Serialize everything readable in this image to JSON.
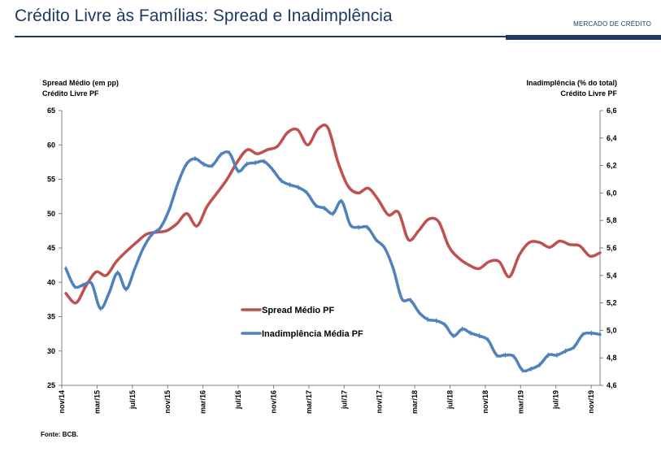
{
  "header": {
    "title": "Crédito Livre às Famílias: Spread e Inadimplência",
    "section_label": "MERCADO DE CRÉDITO"
  },
  "axes": {
    "left_label_line1": "Spread Médio (em pp)",
    "left_label_line2": "Crédito Livre PF",
    "right_label_line1": "Inadimplência (% do total)",
    "right_label_line2": "Crédito Livre PF"
  },
  "source": "Fonte: BCB.",
  "colors": {
    "spread": "#c0504d",
    "inadimplencia": "#4f81bd"
  },
  "chart_data": {
    "type": "line",
    "title": "Crédito Livre às Famílias: Spread e Inadimplência",
    "xlabel": "",
    "x_tick_labels": [
      "nov/14",
      "mar/15",
      "jul/15",
      "nov/15",
      "mar/16",
      "jul/16",
      "nov/16",
      "mar/17",
      "jul/17",
      "nov/17",
      "mar/18",
      "jul/18",
      "nov/18",
      "mar/19",
      "jul/19",
      "nov/19"
    ],
    "ylim_left": [
      25,
      65
    ],
    "ylim_right": [
      4.6,
      6.6
    ],
    "yticks_left": [
      "65",
      "60",
      "55",
      "50",
      "45",
      "40",
      "35",
      "30",
      "25"
    ],
    "yticks_right": [
      "6,6",
      "6,4",
      "6,2",
      "6,0",
      "5,8",
      "5,6",
      "5,4",
      "5,2",
      "5,0",
      "4,8",
      "4,6"
    ],
    "series": [
      {
        "name": "Spread Médio PF",
        "axis": "left",
        "values": [
          38.4,
          37.0,
          39.5,
          41.5,
          41.0,
          43.0,
          44.5,
          45.8,
          47.0,
          47.3,
          47.5,
          48.5,
          50.0,
          48.2,
          51.0,
          53.0,
          55.0,
          57.5,
          59.3,
          58.7,
          59.3,
          59.8,
          61.8,
          62.2,
          60.0,
          62.3,
          62.5,
          57.5,
          54.0,
          53.0,
          53.7,
          52.0,
          49.8,
          50.2,
          46.2,
          47.5,
          49.2,
          48.8,
          45.2,
          43.5,
          42.5,
          42.0,
          43.0,
          43.0,
          40.8,
          44.0,
          45.8,
          45.8,
          45.1,
          46.0,
          45.5,
          45.3,
          43.8,
          44.3
        ]
      },
      {
        "name": "Inadimplência Média PF",
        "axis": "right",
        "values": [
          5.45,
          5.32,
          5.33,
          5.34,
          5.16,
          5.27,
          5.42,
          5.3,
          5.45,
          5.6,
          5.7,
          5.75,
          5.88,
          6.07,
          6.21,
          6.25,
          6.21,
          6.2,
          6.28,
          6.29,
          6.16,
          6.21,
          6.22,
          6.23,
          6.17,
          6.09,
          6.06,
          6.04,
          6.0,
          5.91,
          5.89,
          5.85,
          5.94,
          5.77,
          5.75,
          5.75,
          5.66,
          5.6,
          5.45,
          5.23,
          5.22,
          5.13,
          5.08,
          5.07,
          5.04,
          4.96,
          5.01,
          4.98,
          4.96,
          4.93,
          4.82,
          4.82,
          4.81,
          4.71,
          4.72,
          4.75,
          4.82,
          4.82,
          4.85,
          4.88,
          4.97,
          4.98,
          4.97
        ]
      }
    ]
  }
}
